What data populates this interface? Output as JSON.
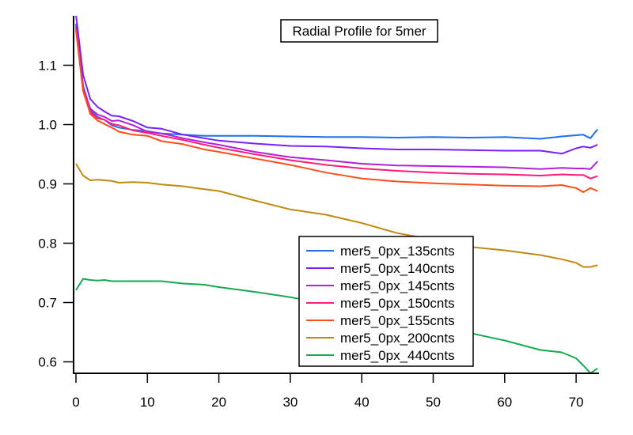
{
  "chart_data": {
    "type": "line",
    "title": "Radial Profile for 5mer",
    "xlabel": "",
    "ylabel": "",
    "xlim": [
      -0.4,
      73.4
    ],
    "ylim": [
      0.578,
      1.18
    ],
    "grid": false,
    "legend_position": "bottom-center",
    "x_ticks": [
      0,
      10,
      20,
      30,
      40,
      50,
      60,
      70
    ],
    "x_tick_labels": [
      "0",
      "10",
      "20",
      "30",
      "40",
      "50",
      "60",
      "70"
    ],
    "y_ticks": [
      0.6,
      0.7,
      0.8,
      0.9,
      1.0,
      1.1
    ],
    "y_tick_labels": [
      "0.6",
      "0.7",
      "0.8",
      "0.9",
      "1.0",
      "1.1"
    ],
    "x": [
      0,
      1,
      2,
      3,
      4,
      5,
      6,
      8,
      10,
      12,
      15,
      18,
      20,
      25,
      30,
      35,
      40,
      45,
      50,
      55,
      60,
      65,
      68,
      70,
      71,
      72,
      73
    ],
    "series": [
      {
        "name": "mer5_0px_135cnts",
        "color": "#1f6ef0",
        "values": [
          1.17,
          1.066,
          1.024,
          1.013,
          1.008,
          0.999,
          0.995,
          0.991,
          0.989,
          0.985,
          0.983,
          0.981,
          0.981,
          0.981,
          0.98,
          0.979,
          0.979,
          0.978,
          0.979,
          0.978,
          0.979,
          0.976,
          0.98,
          0.982,
          0.983,
          0.977,
          0.992
        ]
      },
      {
        "name": "mer5_0px_140cnts",
        "color": "#7a1fff",
        "values": [
          1.185,
          1.084,
          1.043,
          1.03,
          1.022,
          1.015,
          1.014,
          1.006,
          0.995,
          0.993,
          0.983,
          0.977,
          0.973,
          0.968,
          0.964,
          0.963,
          0.96,
          0.958,
          0.958,
          0.957,
          0.956,
          0.956,
          0.951,
          0.96,
          0.963,
          0.961,
          0.966
        ]
      },
      {
        "name": "mer5_0px_145cnts",
        "color": "#b41fd8",
        "values": [
          1.165,
          1.062,
          1.027,
          1.017,
          1.013,
          1.006,
          1.007,
          0.999,
          0.988,
          0.985,
          0.977,
          0.97,
          0.966,
          0.954,
          0.945,
          0.94,
          0.934,
          0.931,
          0.93,
          0.929,
          0.928,
          0.925,
          0.927,
          0.926,
          0.926,
          0.925,
          0.938
        ]
      },
      {
        "name": "mer5_0px_150cnts",
        "color": "#ff1a7a",
        "values": [
          1.16,
          1.057,
          1.021,
          1.011,
          1.008,
          1.001,
          0.999,
          0.99,
          0.986,
          0.981,
          0.974,
          0.966,
          0.961,
          0.95,
          0.94,
          0.932,
          0.926,
          0.922,
          0.919,
          0.917,
          0.916,
          0.914,
          0.916,
          0.915,
          0.915,
          0.909,
          0.913
        ]
      },
      {
        "name": "mer5_0px_155cnts",
        "color": "#ff4d1a",
        "values": [
          1.16,
          1.057,
          1.018,
          1.007,
          1.001,
          0.995,
          0.988,
          0.983,
          0.981,
          0.972,
          0.967,
          0.958,
          0.954,
          0.943,
          0.932,
          0.919,
          0.909,
          0.904,
          0.901,
          0.899,
          0.897,
          0.896,
          0.898,
          0.893,
          0.886,
          0.893,
          0.888
        ]
      },
      {
        "name": "mer5_0px_200cnts",
        "color": "#c08a10",
        "values": [
          0.934,
          0.914,
          0.906,
          0.907,
          0.906,
          0.905,
          0.902,
          0.903,
          0.902,
          0.899,
          0.896,
          0.891,
          0.888,
          0.872,
          0.857,
          0.848,
          0.834,
          0.817,
          0.806,
          0.794,
          0.788,
          0.78,
          0.773,
          0.767,
          0.76,
          0.76,
          0.763
        ]
      },
      {
        "name": "mer5_0px_440cnts",
        "color": "#14aa50",
        "values": [
          0.721,
          0.74,
          0.738,
          0.737,
          0.738,
          0.736,
          0.736,
          0.736,
          0.736,
          0.736,
          0.732,
          0.73,
          0.726,
          0.718,
          0.709,
          0.698,
          0.685,
          0.672,
          0.66,
          0.649,
          0.636,
          0.62,
          0.616,
          0.606,
          0.594,
          0.581,
          0.589
        ]
      }
    ]
  }
}
